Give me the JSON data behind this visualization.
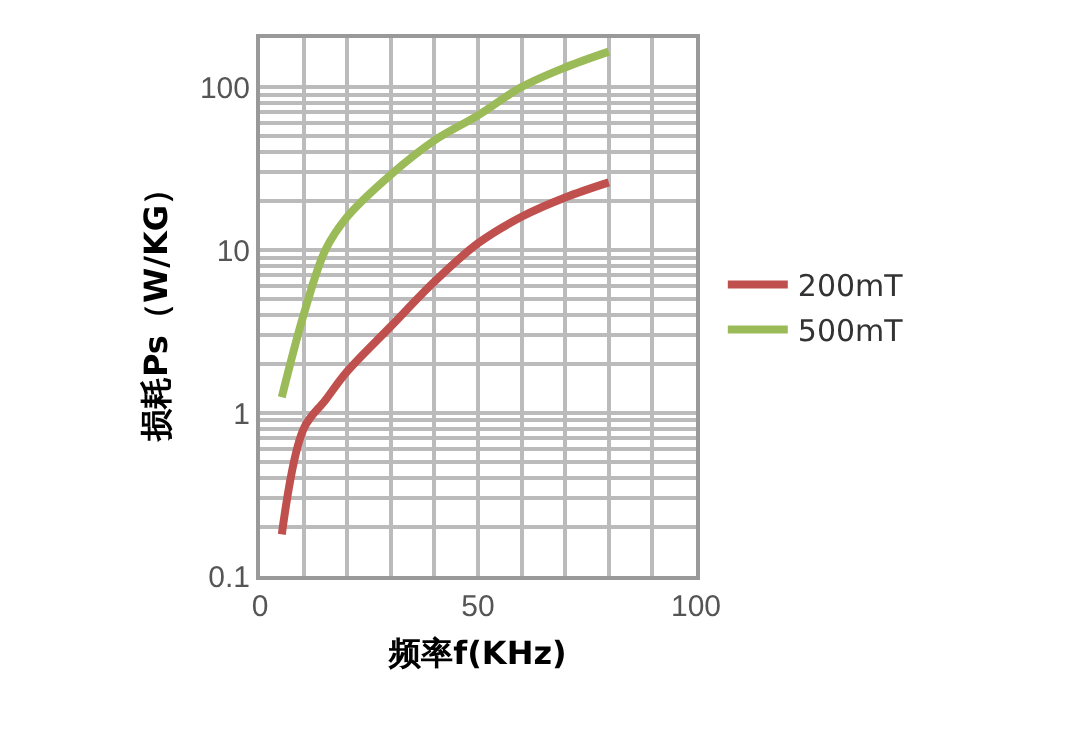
{
  "chart_data": {
    "type": "line",
    "xlabel": "频率f(KHz)",
    "ylabel": "损耗Ps（W/KG）",
    "x": [
      5,
      10,
      15,
      20,
      30,
      40,
      50,
      60,
      70,
      80
    ],
    "series": [
      {
        "name": "200mT",
        "color": "#c0504d",
        "values": [
          0.18,
          0.8,
          1.2,
          1.8,
          3.4,
          6.4,
          11,
          16,
          21,
          26
        ]
      },
      {
        "name": "500mT",
        "color": "#9bbb59",
        "values": [
          1.25,
          4,
          10,
          16,
          29,
          47,
          67,
          100,
          132,
          165
        ]
      }
    ],
    "xlim": [
      0,
      100
    ],
    "xticks": [
      0,
      {
        "value": 10,
        "label": null
      },
      {
        "value": 20,
        "label": null
      },
      {
        "value": 30,
        "label": null
      },
      {
        "value": 40,
        "label": null
      },
      50,
      {
        "value": 60,
        "label": null
      },
      {
        "value": 70,
        "label": null
      },
      {
        "value": 80,
        "label": null
      },
      {
        "value": 90,
        "label": null
      },
      100
    ],
    "ylim": [
      0.1,
      200
    ],
    "yticks": [
      0.1,
      {
        "value": 0.2,
        "label": null
      },
      {
        "value": 0.3,
        "label": null
      },
      {
        "value": 0.4,
        "label": null
      },
      {
        "value": 0.5,
        "label": null
      },
      {
        "value": 0.6,
        "label": null
      },
      {
        "value": 0.7,
        "label": null
      },
      {
        "value": 0.8,
        "label": null
      },
      {
        "value": 0.9,
        "label": null
      },
      1,
      {
        "value": 2,
        "label": null
      },
      {
        "value": 3,
        "label": null
      },
      {
        "value": 4,
        "label": null
      },
      {
        "value": 5,
        "label": null
      },
      {
        "value": 6,
        "label": null
      },
      {
        "value": 7,
        "label": null
      },
      {
        "value": 8,
        "label": null
      },
      {
        "value": 9,
        "label": null
      },
      10,
      {
        "value": 20,
        "label": null
      },
      {
        "value": 30,
        "label": null
      },
      {
        "value": 40,
        "label": null
      },
      {
        "value": 50,
        "label": null
      },
      {
        "value": 60,
        "label": null
      },
      {
        "value": 70,
        "label": null
      },
      {
        "value": 80,
        "label": null
      },
      {
        "value": 90,
        "label": null
      },
      100
    ],
    "log": "y",
    "grid": true,
    "legend": "right",
    "marker": "none",
    "line_style": "solid"
  }
}
